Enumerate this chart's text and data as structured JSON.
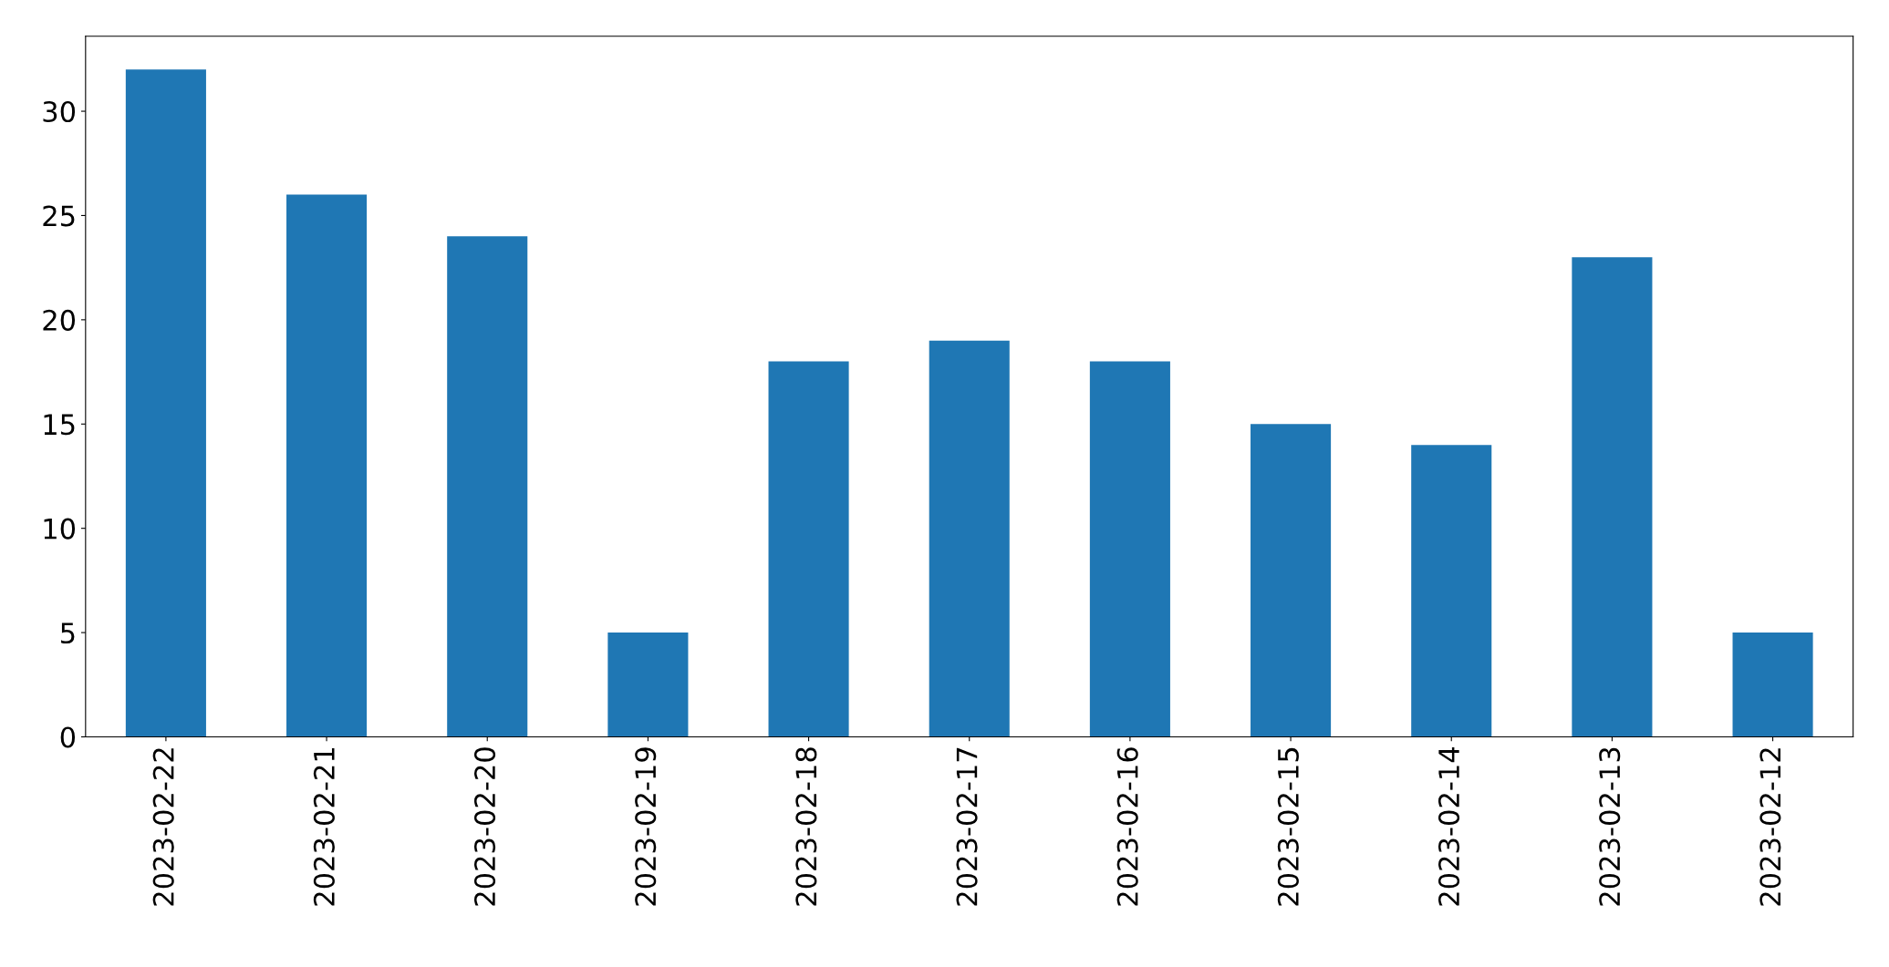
{
  "chart_data": {
    "type": "bar",
    "categories": [
      "2023-02-22",
      "2023-02-21",
      "2023-02-20",
      "2023-02-19",
      "2023-02-18",
      "2023-02-17",
      "2023-02-16",
      "2023-02-15",
      "2023-02-14",
      "2023-02-13",
      "2023-02-12"
    ],
    "values": [
      32,
      26,
      24,
      5,
      18,
      19,
      18,
      15,
      14,
      23,
      5
    ],
    "color": "#1f77b4",
    "ylim": [
      0,
      33.6
    ],
    "yticks": [
      0,
      5,
      10,
      15,
      20,
      25,
      30
    ],
    "grid": false,
    "legend": false
  }
}
